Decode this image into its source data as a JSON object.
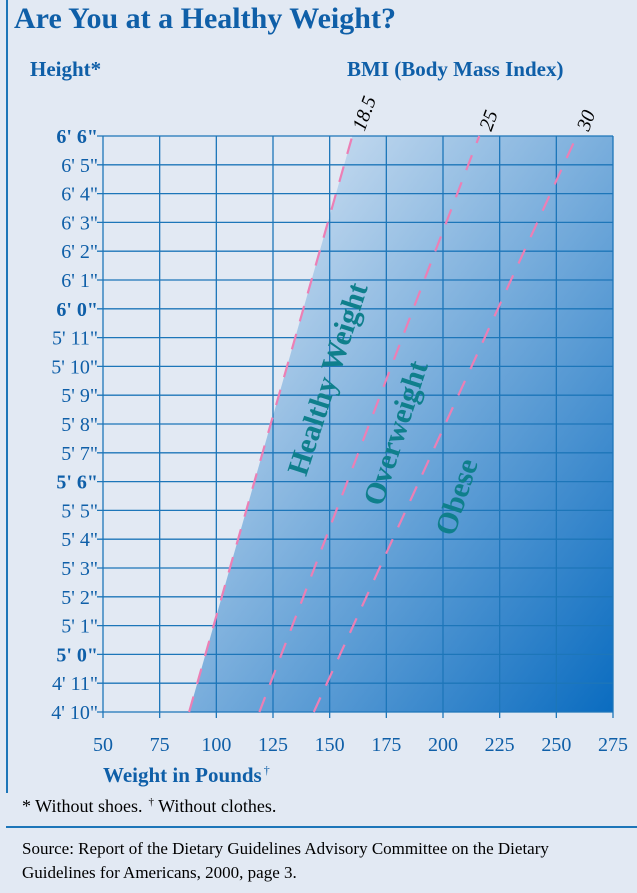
{
  "title": "Are You at a Healthy Weight?",
  "height_label": "Height*",
  "bmi_label": "BMI (Body Mass Index)",
  "xlabel": "Weight in Pounds",
  "xlabel_mark": "†",
  "footnote_shoes": "* Without shoes.",
  "footnote_clothes_mark": "†",
  "footnote_clothes": "Without clothes.",
  "source": "Source: Report of the Dietary Guidelines Advisory Committee on the Dietary Guidelines for Americans, 2000, page 3.",
  "colors": {
    "title": "#0f5fa8",
    "grid": "#1d76b9",
    "bmi_lines": "#ec7fb5",
    "zone_text": "#0f7f8c",
    "gradient_light": "#e8eff8",
    "gradient_dark": "#0a6cc0"
  },
  "chart_data": {
    "type": "line",
    "x_ticks": [
      50,
      75,
      100,
      125,
      150,
      175,
      200,
      225,
      250,
      275
    ],
    "xlim": [
      50,
      275
    ],
    "y_ticks": [
      "6' 6\"",
      "6' 5\"",
      "6' 4\"",
      "6' 3\"",
      "6' 2\"",
      "6' 1\"",
      "6' 0\"",
      "5' 11\"",
      "5' 10\"",
      "5' 9\"",
      "5' 8\"",
      "5' 7\"",
      "5' 6\"",
      "5' 5\"",
      "5' 4\"",
      "5' 3\"",
      "5' 2\"",
      "5' 1\"",
      "5' 0\"",
      "4' 11\"",
      "4' 10\""
    ],
    "y_inches": [
      78,
      77,
      76,
      75,
      74,
      73,
      72,
      71,
      70,
      69,
      68,
      67,
      66,
      65,
      64,
      63,
      62,
      61,
      60,
      59,
      58
    ],
    "bold_ticks": [
      "6' 6\"",
      "6' 0\"",
      "5' 6\"",
      "5' 0\""
    ],
    "series": [
      {
        "name": "18.5",
        "x": [
          88,
          160
        ],
        "y": [
          58,
          78
        ]
      },
      {
        "name": "25",
        "x": [
          119,
          216
        ],
        "y": [
          58,
          78
        ]
      },
      {
        "name": "30",
        "x": [
          143,
          259
        ],
        "y": [
          58,
          78
        ]
      }
    ],
    "zones": [
      "Healthy Weight",
      "Overweight",
      "Obese"
    ],
    "grid": true
  }
}
